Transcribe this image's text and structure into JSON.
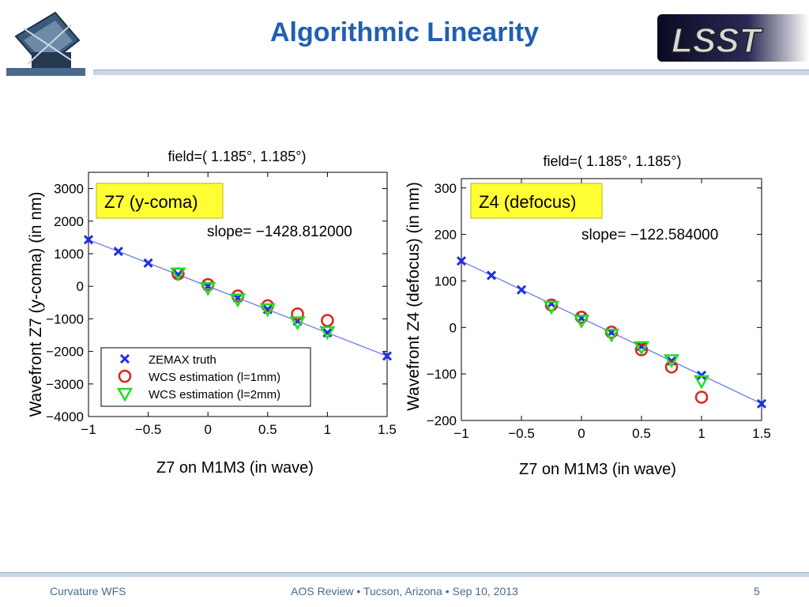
{
  "slide": {
    "title": "Algorithmic Linearity",
    "footer_left": "Curvature WFS",
    "footer_center": "AOS Review • Tucson, Arizona • Sep 10, 2013",
    "page_number": "5",
    "accent_color": "#1f5fb4",
    "logo_right_text": "LSST"
  },
  "captions": [
    "Z7 on M1M3 (in wave)",
    "Z7 on M1M3 (in wave)"
  ],
  "chart_data": [
    {
      "type": "scatter",
      "title": "field=( 1.185°,  1.185°)",
      "ylabel": "Wavefront Z7 (y-coma) (in nm)",
      "xlabel": "",
      "badge": "Z7 (y-coma)",
      "slope_text": "slope= −1428.812000",
      "xlim": [
        -1,
        1.5
      ],
      "ylim": [
        -4000,
        3500
      ],
      "xticks": [
        "−1",
        "−0.5",
        "0",
        "0.5",
        "1",
        "1.5"
      ],
      "yticks": [
        "3000",
        "2000",
        "1000",
        "0",
        "−1000",
        "−2000",
        "−3000",
        "−4000"
      ],
      "ytick_values": [
        3000,
        2000,
        1000,
        0,
        -1000,
        -2000,
        -3000,
        -4000
      ],
      "xtick_values": [
        -1,
        -0.5,
        0,
        0.5,
        1,
        1.5
      ],
      "fit_line": {
        "slope": -1428.812,
        "intercept": 0
      },
      "legend": [
        "ZEMAX truth",
        "WCS estimation (l=1mm)",
        "WCS estimation (l=2mm)"
      ],
      "legend_position": "bottom-left",
      "series": [
        {
          "name": "ZEMAX truth",
          "marker": "x",
          "color": "#1f2fe0",
          "x": [
            -1,
            -0.75,
            -0.5,
            -0.25,
            0,
            0.25,
            0.5,
            0.75,
            1,
            1.5
          ],
          "y": [
            1429,
            1072,
            714,
            357,
            0,
            -357,
            -714,
            -1072,
            -1429,
            -2143
          ]
        },
        {
          "name": "WCS estimation (l=1mm)",
          "marker": "circle",
          "color": "#e02020",
          "x": [
            -0.25,
            0,
            0.25,
            0.5,
            0.75,
            1
          ],
          "y": [
            380,
            50,
            -300,
            -600,
            -850,
            -1050
          ]
        },
        {
          "name": "WCS estimation (l=2mm)",
          "marker": "triangle",
          "color": "#22dd22",
          "x": [
            -0.25,
            0,
            0.25,
            0.5,
            0.75,
            1
          ],
          "y": [
            400,
            -50,
            -400,
            -700,
            -1100,
            -1400
          ]
        }
      ]
    },
    {
      "type": "scatter",
      "title": "field=( 1.185°,  1.185°)",
      "ylabel": "Wavefront Z4 (defocus) (in nm)",
      "xlabel": "",
      "badge": "Z4 (defocus)",
      "slope_text": "slope=  −122.584000",
      "xlim": [
        -1,
        1.5
      ],
      "ylim": [
        -200,
        320
      ],
      "xticks": [
        "−1",
        "−0.5",
        "0",
        "0.5",
        "1",
        "1.5"
      ],
      "yticks": [
        "300",
        "200",
        "100",
        "0",
        "−100",
        "−200"
      ],
      "ytick_values": [
        300,
        200,
        100,
        0,
        -100,
        -200
      ],
      "xtick_values": [
        -1,
        -0.5,
        0,
        0.5,
        1,
        1.5
      ],
      "fit_line": {
        "slope": -122.584,
        "intercept": 20
      },
      "legend": [],
      "series": [
        {
          "name": "ZEMAX truth",
          "marker": "x",
          "color": "#1f2fe0",
          "x": [
            -1,
            -0.75,
            -0.5,
            -0.25,
            0,
            0.25,
            0.5,
            0.75,
            1,
            1.5
          ],
          "y": [
            143,
            112,
            81,
            51,
            20,
            -11,
            -41,
            -72,
            -103,
            -164
          ]
        },
        {
          "name": "WCS estimation (l=1mm)",
          "marker": "circle",
          "color": "#e02020",
          "x": [
            -0.25,
            0,
            0.25,
            0.5,
            0.75,
            1
          ],
          "y": [
            48,
            22,
            -10,
            -48,
            -85,
            -150
          ]
        },
        {
          "name": "WCS estimation (l=2mm)",
          "marker": "triangle",
          "color": "#22dd22",
          "x": [
            -0.25,
            0,
            0.25,
            0.5,
            0.75,
            1
          ],
          "y": [
            45,
            15,
            -15,
            -42,
            -70,
            -115
          ]
        }
      ]
    }
  ]
}
